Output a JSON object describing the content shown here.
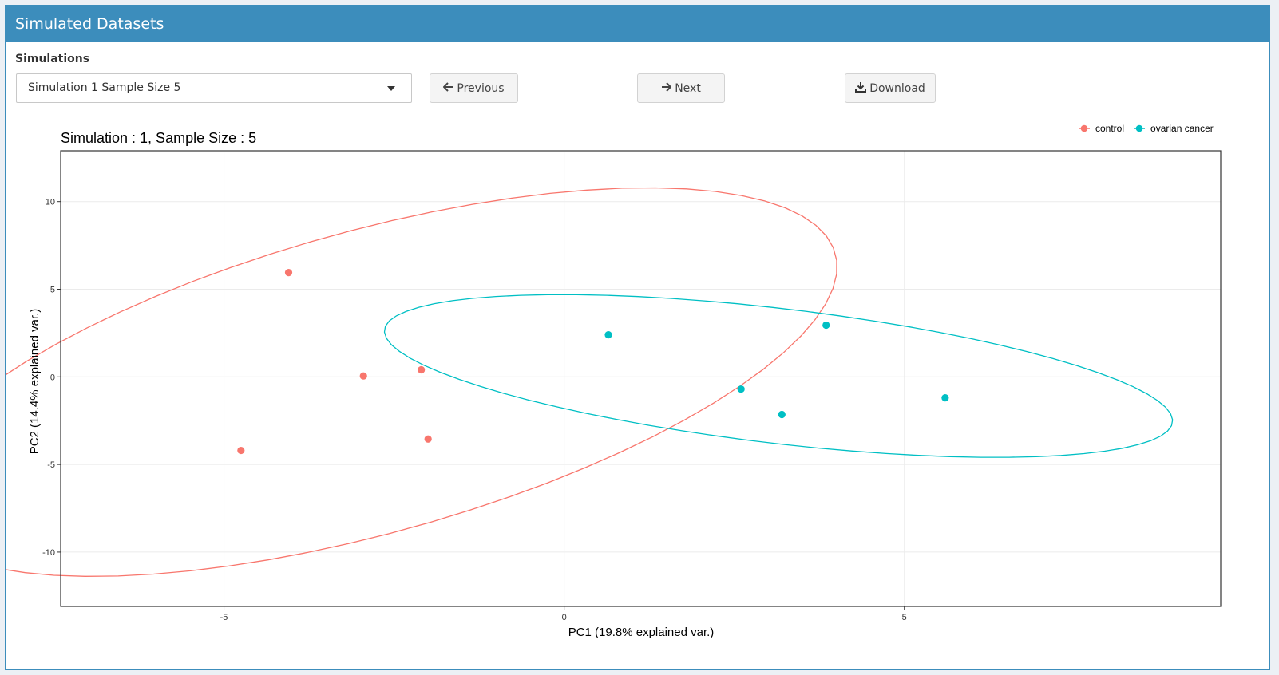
{
  "panel": {
    "title": "Simulated Datasets"
  },
  "controls": {
    "simulations_label": "Simulations",
    "select_value": "Simulation 1 Sample Size 5",
    "previous_label": "Previous",
    "next_label": "Next",
    "download_label": "Download"
  },
  "icons": {
    "previous": "arrow-left-icon",
    "next": "arrow-right-icon",
    "download": "download-icon",
    "select": "caret-down-icon"
  },
  "colors": {
    "header": "#3c8dbc",
    "control": "#f8766d",
    "ovarian_cancer": "#00bfc4"
  },
  "chart_data": {
    "type": "scatter",
    "title": "Simulation : 1, Sample Size : 5",
    "xlabel": "PC1 (19.8% explained var.)",
    "ylabel": "PC2 (14.4% explained var.)",
    "xlim": [
      -7.4,
      9.65
    ],
    "ylim": [
      -13.1,
      12.9
    ],
    "xticks": [
      -5,
      0,
      5
    ],
    "yticks": [
      10,
      5,
      0,
      -5,
      -10
    ],
    "xtick_labels": [
      "-5",
      "0",
      "5"
    ],
    "ytick_labels": [
      "10",
      "5",
      "0",
      "-5",
      "-10"
    ],
    "grid": true,
    "legend_position": "top-right",
    "series": [
      {
        "name": "control",
        "color": "#f8766d",
        "x": [
          -4.05,
          -4.75,
          -2.95,
          -2.1,
          -2.0
        ],
        "y": [
          5.95,
          -4.2,
          0.05,
          0.4,
          -3.55
        ],
        "ellipse": {
          "cx": -2.85,
          "cy": -0.3,
          "a": 12.0,
          "b": 5.1,
          "angle_deg": 65
        }
      },
      {
        "name": "ovarian cancer",
        "color": "#00bfc4",
        "x": [
          0.65,
          2.6,
          3.2,
          3.85,
          5.6
        ],
        "y": [
          2.4,
          -0.7,
          -2.15,
          2.95,
          -1.2
        ],
        "ellipse": {
          "cx": 3.15,
          "cy": 0.05,
          "a": 6.6,
          "b": 3.4,
          "angle_deg": -34
        }
      }
    ]
  }
}
